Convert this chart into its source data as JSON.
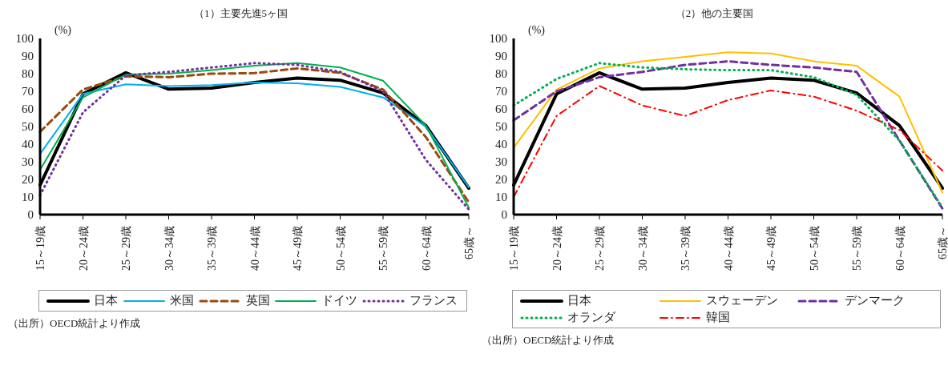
{
  "chart_data": [
    {
      "type": "line",
      "title": "（1）主要先進5ヶ国",
      "ylabel": "(%)",
      "categories": [
        "15～19歳",
        "20～24歳",
        "25～29歳",
        "30～34歳",
        "35～39歳",
        "40～44歳",
        "45～49歳",
        "50～54歳",
        "55～59歳",
        "60～64歳",
        "65歳～"
      ],
      "ylim": [
        0,
        100
      ],
      "yticks": [
        0,
        10,
        20,
        30,
        40,
        50,
        60,
        70,
        80,
        90,
        100
      ],
      "grid": false,
      "legend": "bottom",
      "annotations": [
        "（出所）OECD統計より作成"
      ],
      "series": [
        {
          "name": "日本",
          "color": "#000000",
          "line_style": "solid",
          "values": [
            16.8,
            68.5,
            80.5,
            71.2,
            71.8,
            75,
            77.5,
            76.3,
            69,
            50.5,
            15
          ]
        },
        {
          "name": "米国",
          "color": "#00b0f0",
          "line_style": "solid",
          "values": [
            34.5,
            68.5,
            74,
            73,
            73.5,
            75,
            74.5,
            72.5,
            66.5,
            50,
            15.5
          ]
        },
        {
          "name": "英国",
          "color": "#9c4a0c",
          "line_style": "dashed",
          "values": [
            47,
            71,
            78.5,
            78,
            80,
            80.3,
            83,
            80.5,
            71,
            44,
            7
          ]
        },
        {
          "name": "ドイツ",
          "color": "#00b050",
          "line_style": "solid",
          "values": [
            25.5,
            66.5,
            79.5,
            80,
            82,
            84.5,
            86,
            83.5,
            76,
            50.5,
            4
          ]
        },
        {
          "name": "フランス",
          "color": "#7030a0",
          "line_style": "dotted",
          "values": [
            11,
            58,
            79,
            81,
            83.5,
            86,
            85,
            81,
            70,
            31,
            3
          ]
        }
      ]
    },
    {
      "type": "line",
      "title": "（2）他の主要国",
      "ylabel": "(%)",
      "categories": [
        "15～19歳",
        "20～24歳",
        "25～29歳",
        "30～34歳",
        "35～39歳",
        "40～44歳",
        "45～49歳",
        "50～54歳",
        "55～59歳",
        "60～64歳",
        "65歳～"
      ],
      "ylim": [
        0,
        100
      ],
      "yticks": [
        0,
        10,
        20,
        30,
        40,
        50,
        60,
        70,
        80,
        90,
        100
      ],
      "grid": false,
      "legend": "bottom",
      "annotations": [
        "（出所）OECD統計より作成"
      ],
      "series": [
        {
          "name": "日本",
          "color": "#000000",
          "line_style": "solid",
          "values": [
            16.8,
            68.5,
            80.5,
            71.2,
            71.8,
            75,
            77.5,
            76.3,
            69,
            50.5,
            15
          ]
        },
        {
          "name": "スウェーデン",
          "color": "#ffc000",
          "line_style": "solid",
          "values": [
            38,
            71,
            83,
            87,
            89.5,
            92.2,
            91.5,
            87,
            84.5,
            67,
            12.5
          ]
        },
        {
          "name": "デンマーク",
          "color": "#7030a0",
          "line_style": "dashed",
          "values": [
            53.5,
            70,
            78,
            81,
            85,
            87,
            85,
            83.5,
            81,
            42,
            3.5
          ]
        },
        {
          "name": "オランダ",
          "color": "#00b050",
          "line_style": "dotted",
          "values": [
            62,
            77,
            86,
            83.5,
            82.5,
            82,
            82,
            78,
            68,
            42,
            4
          ]
        },
        {
          "name": "韓国",
          "color": "#ff0000",
          "line_style": "dashdot",
          "values": [
            10,
            56,
            73,
            62,
            56,
            65,
            70.5,
            67,
            59,
            48,
            25
          ]
        }
      ]
    }
  ]
}
